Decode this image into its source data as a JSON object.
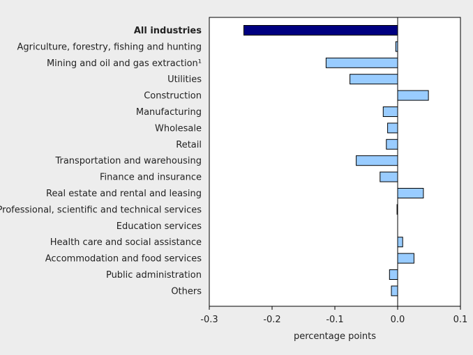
{
  "chart_data": {
    "type": "bar",
    "orientation": "horizontal",
    "title": "",
    "xlabel": "percentage points",
    "ylabel": "",
    "xlim": [
      -0.3,
      0.1
    ],
    "x_ticks": [
      "-0.3",
      "-0.2",
      "-0.1",
      "0.0",
      "0.1"
    ],
    "x_tick_values": [
      -0.3,
      -0.2,
      -0.1,
      0.0,
      0.1
    ],
    "grid": false,
    "legend": "none",
    "colors": {
      "highlight": "#000080",
      "bars": "#99ccff",
      "outline": "#000000",
      "plot_bg": "#ffffff",
      "page_bg": "#ededed"
    },
    "categories": [
      "All industries",
      "Agriculture, forestry, fishing and hunting",
      "Mining and oil and gas extraction¹",
      "Utilities",
      "Construction",
      "Manufacturing",
      "Wholesale",
      "Retail",
      "Transportation and warehousing",
      "Finance and insurance",
      "Real estate and rental and leasing",
      "Professional, scientific and technical services",
      "Education services",
      "Health care and social assistance",
      "Accommodation and food services",
      "Public administration",
      "Others"
    ],
    "values": [
      -0.245,
      -0.003,
      -0.114,
      -0.076,
      0.049,
      -0.023,
      -0.016,
      -0.018,
      -0.066,
      -0.028,
      0.041,
      -0.001,
      0.0,
      0.008,
      0.026,
      -0.013,
      -0.01
    ],
    "highlight_index": 0
  }
}
